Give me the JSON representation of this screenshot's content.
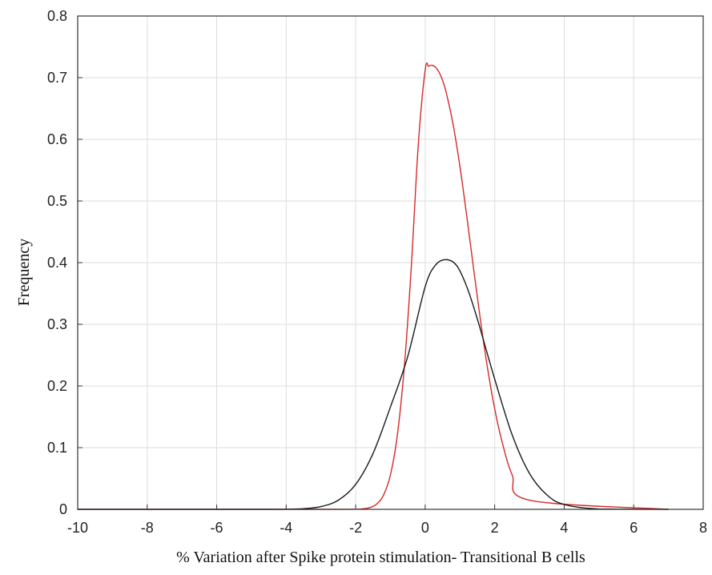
{
  "chart_data": {
    "type": "line",
    "title": "",
    "xlabel": "% Variation after Spike protein stimulation- Transitional B cells",
    "ylabel": "Frequency",
    "xlim": [
      -10,
      8
    ],
    "ylim": [
      0,
      0.8
    ],
    "xticks": [
      -10,
      -8,
      -6,
      -4,
      -2,
      0,
      2,
      4,
      6,
      8
    ],
    "yticks": [
      0,
      0.1,
      0.2,
      0.3,
      0.4,
      0.5,
      0.6,
      0.7,
      0.8
    ],
    "xtick_labels": [
      "-10",
      "-8",
      "-6",
      "-4",
      "-2",
      "0",
      "2",
      "4",
      "6",
      "8"
    ],
    "ytick_labels": [
      "0",
      "0.1",
      "0.2",
      "0.3",
      "0.4",
      "0.5",
      "0.6",
      "0.7",
      "0.8"
    ],
    "grid": true,
    "series": [
      {
        "color": "#d42a2a",
        "x": [
          -10,
          -3,
          -2,
          -1.8,
          -1.6,
          -1.4,
          -1.2,
          -1.0,
          -0.8,
          -0.6,
          -0.4,
          -0.2,
          0.0,
          0.1,
          0.2,
          0.3,
          0.4,
          0.5,
          0.6,
          0.8,
          1.0,
          1.2,
          1.4,
          1.6,
          1.8,
          2.0,
          2.2,
          2.5,
          3,
          7
        ],
        "y": [
          0,
          0,
          0.0002,
          0.0008,
          0.0027,
          0.0083,
          0.0228,
          0.0558,
          0.1208,
          0.2316,
          0.3929,
          0.5901,
          0.7128,
          0.7186,
          0.7201,
          0.7168,
          0.7089,
          0.6955,
          0.6771,
          0.6252,
          0.5558,
          0.474,
          0.3871,
          0.3028,
          0.227,
          0.1631,
          0.1123,
          0.0563,
          0.0149,
          0
        ]
      },
      {
        "color": "#1a1a1a",
        "x": [
          -10,
          -5,
          -4,
          -3.5,
          -3,
          -2.5,
          -2,
          -1.5,
          -1,
          -0.5,
          0,
          0.3,
          0.6,
          0.9,
          1.2,
          1.5,
          2,
          2.5,
          3,
          3.5,
          4,
          5,
          7
        ],
        "y": [
          0,
          0,
          0.0002,
          0.0011,
          0.0044,
          0.0148,
          0.0405,
          0.0907,
          0.166,
          0.2483,
          0.3611,
          0.3963,
          0.405,
          0.3958,
          0.3606,
          0.3088,
          0.2112,
          0.1213,
          0.0583,
          0.0235,
          0.0079,
          0.0006,
          0
        ]
      }
    ]
  }
}
